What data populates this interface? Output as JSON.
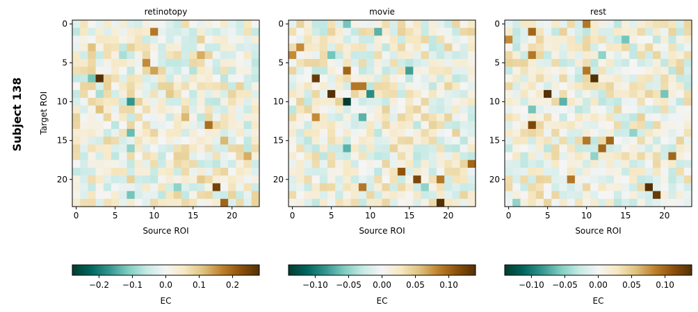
{
  "figure": {
    "row_label": "Subject 138",
    "ylabel": "Target ROI",
    "xlabel": "Source ROI",
    "colorbar_label": "EC",
    "colormap": "BrBG_r"
  },
  "chart_data": [
    {
      "type": "heatmap",
      "title": "retinotopy",
      "xlabel": "Source ROI",
      "ylabel": "Target ROI",
      "x_ticks": [
        0,
        5,
        10,
        15,
        20
      ],
      "y_ticks": [
        0,
        5,
        10,
        15,
        20
      ],
      "n_rois": 24,
      "colorbar": {
        "label": "EC",
        "vmin": -0.28,
        "vmax": 0.28,
        "ticks": [
          -0.2,
          -0.1,
          0.0,
          0.1,
          0.2
        ],
        "tick_labels": [
          "−0.2",
          "−0.1",
          "0.0",
          "0.1",
          "0.2"
        ]
      },
      "strong_positive": [
        [
          7,
          3,
          0.28
        ],
        [
          1,
          10,
          0.18
        ],
        [
          5,
          9,
          0.16
        ],
        [
          6,
          10,
          0.14
        ],
        [
          4,
          16,
          0.13
        ],
        [
          21,
          18,
          0.25
        ],
        [
          13,
          17,
          0.19
        ],
        [
          11,
          3,
          0.11
        ],
        [
          12,
          14,
          0.12
        ],
        [
          15,
          19,
          0.12
        ],
        [
          17,
          22,
          0.13
        ],
        [
          23,
          19,
          0.2
        ],
        [
          3,
          2,
          0.11
        ],
        [
          9,
          12,
          0.1
        ],
        [
          20,
          16,
          0.1
        ]
      ],
      "strong_negative": [
        [
          10,
          7,
          -0.17
        ],
        [
          7,
          2,
          -0.12
        ],
        [
          14,
          7,
          -0.13
        ],
        [
          16,
          7,
          -0.1
        ],
        [
          22,
          7,
          -0.12
        ],
        [
          21,
          13,
          -0.1
        ],
        [
          4,
          6,
          -0.08
        ],
        [
          9,
          3,
          -0.08
        ],
        [
          6,
          15,
          -0.07
        ]
      ]
    },
    {
      "type": "heatmap",
      "title": "movie",
      "xlabel": "Source ROI",
      "ylabel": "",
      "x_ticks": [
        0,
        5,
        10,
        15,
        20
      ],
      "y_ticks": [
        0,
        5,
        10,
        15,
        20
      ],
      "n_rois": 24,
      "colorbar": {
        "label": "EC",
        "vmin": -0.14,
        "vmax": 0.14,
        "ticks": [
          -0.1,
          -0.05,
          0.0,
          0.05,
          0.1
        ],
        "tick_labels": [
          "−0.10",
          "−0.05",
          "0.00",
          "0.05",
          "0.10"
        ]
      },
      "strong_positive": [
        [
          7,
          3,
          0.13
        ],
        [
          9,
          5,
          0.14
        ],
        [
          6,
          7,
          0.1
        ],
        [
          8,
          8,
          0.09
        ],
        [
          8,
          9,
          0.09
        ],
        [
          4,
          0,
          0.08
        ],
        [
          3,
          1,
          0.08
        ],
        [
          19,
          14,
          0.11
        ],
        [
          20,
          16,
          0.12
        ],
        [
          21,
          17,
          0.1
        ],
        [
          23,
          19,
          0.14
        ],
        [
          18,
          23,
          0.1
        ],
        [
          21,
          9,
          0.09
        ],
        [
          12,
          3,
          0.08
        ],
        [
          20,
          19,
          0.09
        ]
      ],
      "strong_negative": [
        [
          10,
          7,
          -0.14
        ],
        [
          9,
          10,
          -0.09
        ],
        [
          6,
          15,
          -0.08
        ],
        [
          12,
          9,
          -0.07
        ],
        [
          16,
          7,
          -0.07
        ],
        [
          0,
          7,
          -0.06
        ],
        [
          21,
          17,
          -0.05
        ],
        [
          1,
          11,
          -0.07
        ],
        [
          4,
          5,
          -0.06
        ]
      ]
    },
    {
      "type": "heatmap",
      "title": "rest",
      "xlabel": "Source ROI",
      "ylabel": "",
      "x_ticks": [
        0,
        5,
        10,
        15,
        20
      ],
      "y_ticks": [
        0,
        5,
        10,
        15,
        20
      ],
      "n_rois": 24,
      "colorbar": {
        "label": "EC",
        "vmin": -0.14,
        "vmax": 0.14,
        "ticks": [
          -0.1,
          -0.05,
          0.0,
          0.05,
          0.1
        ],
        "tick_labels": [
          "−0.10",
          "−0.05",
          "0.00",
          "0.05",
          "0.10"
        ]
      },
      "strong_positive": [
        [
          7,
          11,
          0.14
        ],
        [
          9,
          5,
          0.14
        ],
        [
          6,
          10,
          0.09
        ],
        [
          1,
          3,
          0.1
        ],
        [
          4,
          3,
          0.09
        ],
        [
          13,
          3,
          0.12
        ],
        [
          15,
          13,
          0.1
        ],
        [
          16,
          12,
          0.1
        ],
        [
          21,
          18,
          0.14
        ],
        [
          22,
          19,
          0.13
        ],
        [
          17,
          21,
          0.1
        ],
        [
          15,
          10,
          0.09
        ],
        [
          2,
          0,
          0.08
        ],
        [
          0,
          10,
          0.09
        ],
        [
          20,
          8,
          0.09
        ]
      ],
      "strong_negative": [
        [
          10,
          7,
          -0.07
        ],
        [
          11,
          3,
          -0.06
        ],
        [
          2,
          15,
          -0.06
        ],
        [
          4,
          12,
          -0.05
        ],
        [
          9,
          20,
          -0.06
        ],
        [
          17,
          11,
          -0.05
        ],
        [
          14,
          16,
          -0.05
        ],
        [
          23,
          1,
          -0.05
        ]
      ]
    }
  ]
}
